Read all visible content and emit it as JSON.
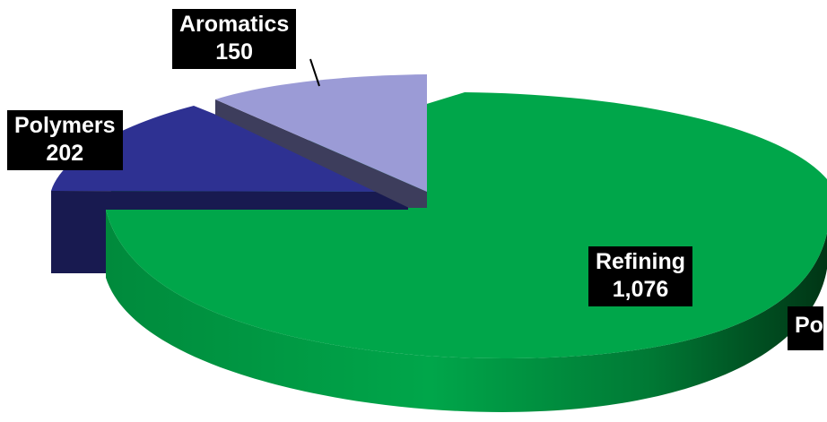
{
  "chart_data": {
    "type": "pie",
    "style": "3d-exploded",
    "title": "",
    "slices": [
      {
        "name": "Refining",
        "value_label": "1,076",
        "value": 1076,
        "color": "#00a64a",
        "side_color": "#007a35"
      },
      {
        "name": "Po",
        "value_label": "",
        "value": 0,
        "color": "#000000",
        "side_color": "#000000"
      },
      {
        "name": "Polymers",
        "value_label": "202",
        "value": 202,
        "color": "#2e3192",
        "side_color": "#181a50"
      },
      {
        "name": "Aromatics",
        "value_label": "150",
        "value": 150,
        "color": "#9b9bd6",
        "side_color": "#3d3d5c"
      }
    ],
    "legend": "none",
    "grid": false
  }
}
